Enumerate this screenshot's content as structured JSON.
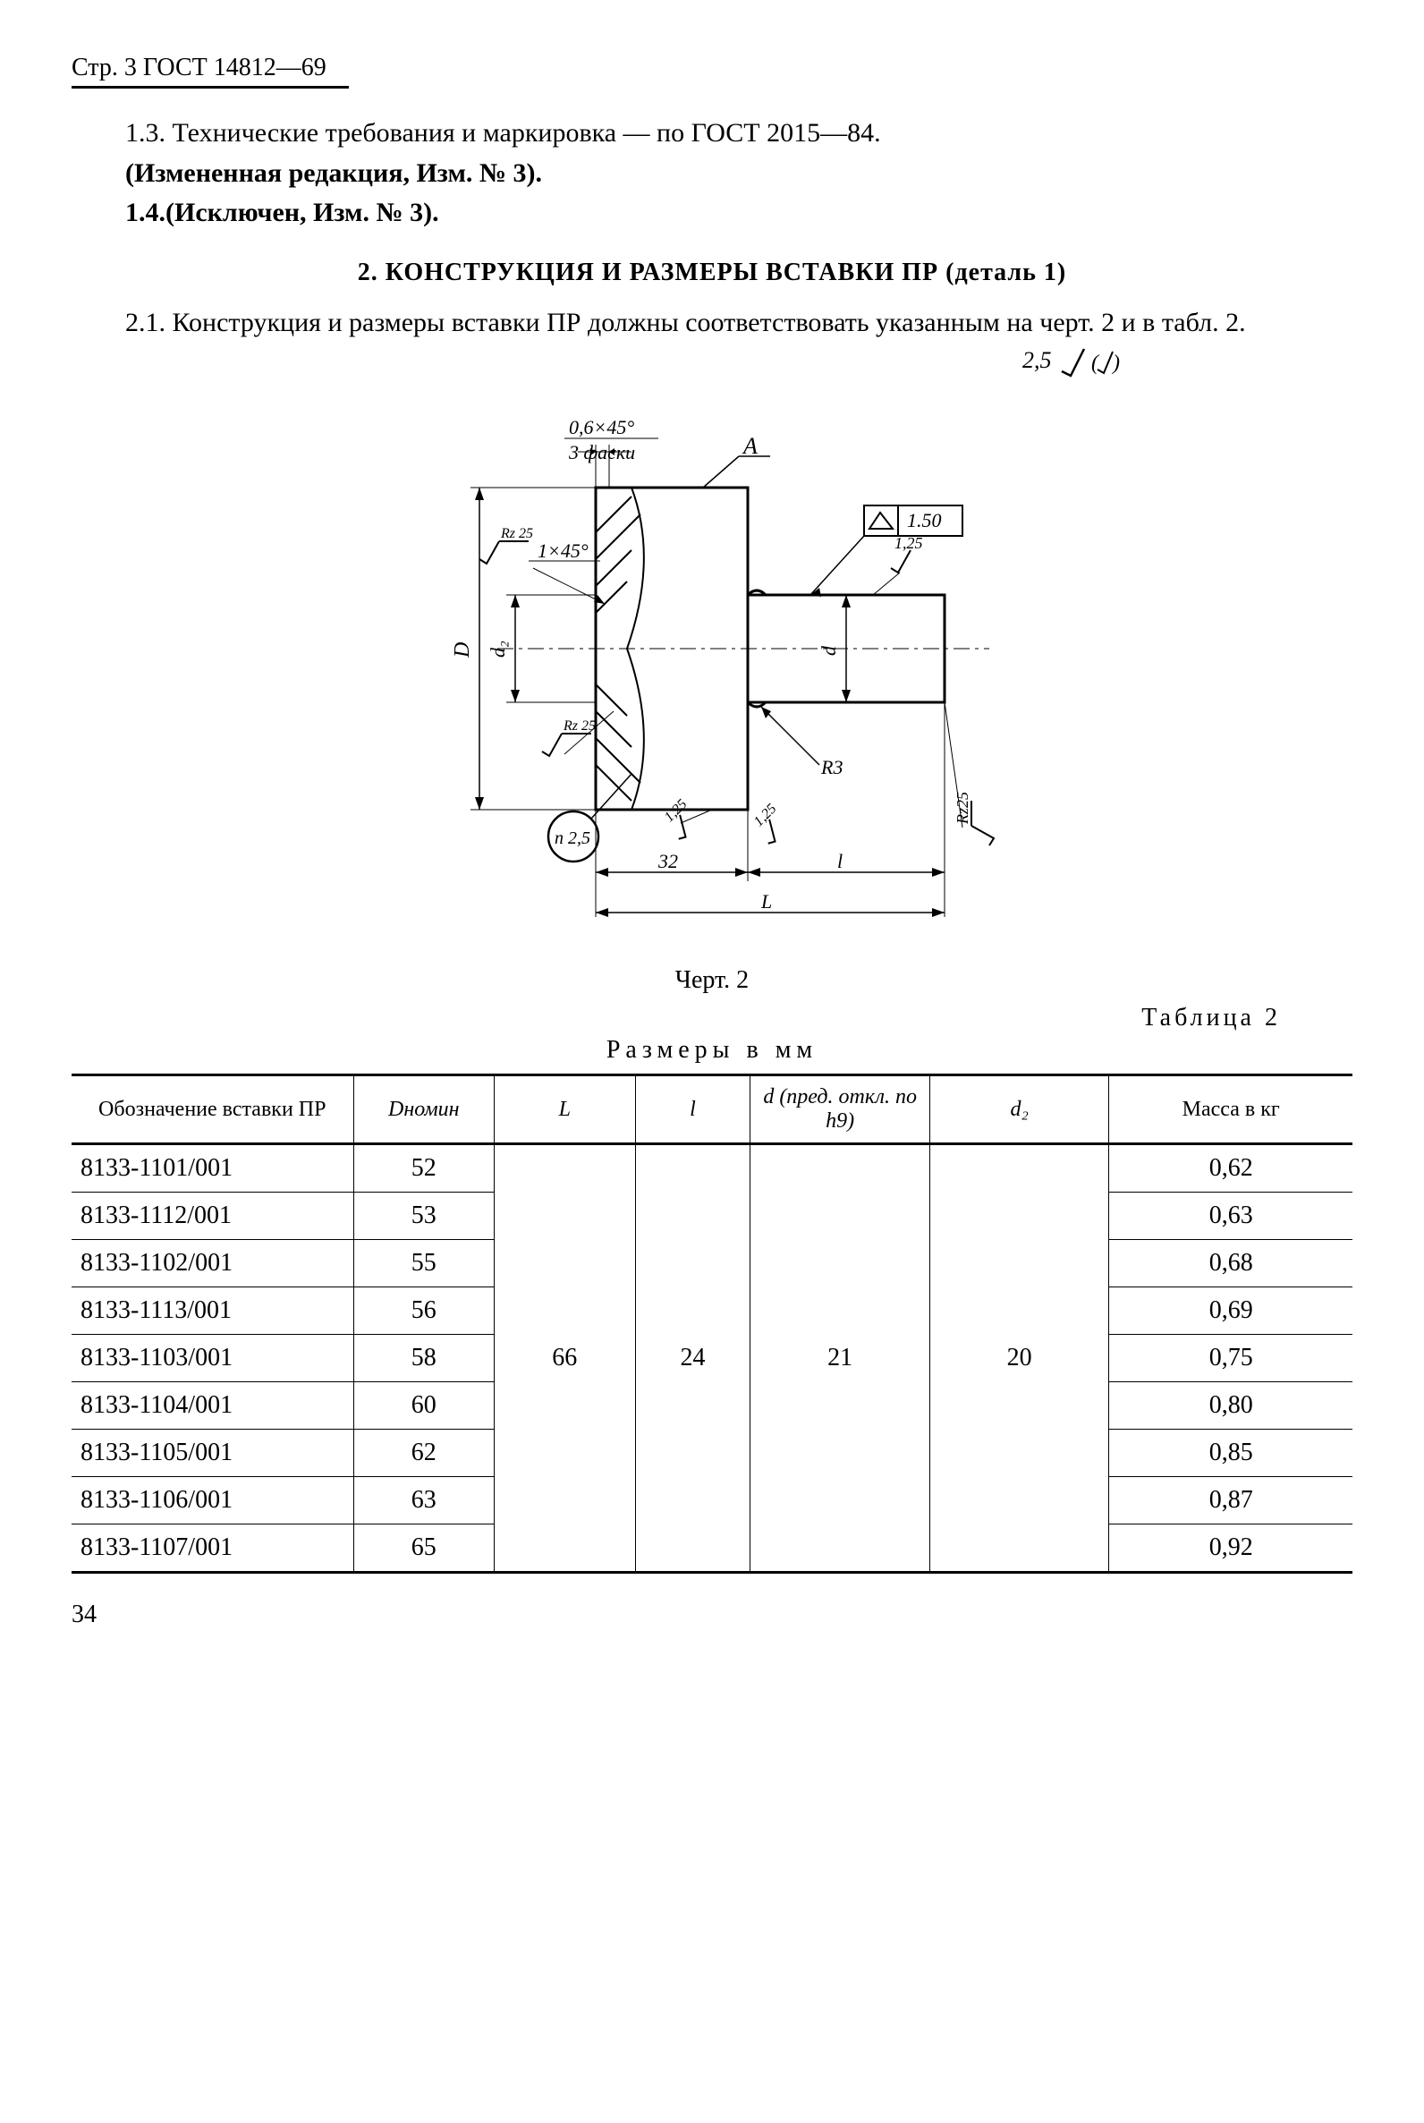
{
  "header": {
    "page_ref": "Стр. 3 ГОСТ 14812—69"
  },
  "paragraphs": {
    "p13": "1.3. Технические требования и маркировка — по ГОСТ 2015—84.",
    "p13b": "(Измененная редакция, Изм. № 3).",
    "p14": "1.4.(Исключен, Изм. № 3)."
  },
  "section2": {
    "title": "2. КОНСТРУКЦИЯ И РАЗМЕРЫ ВСТАВКИ ПР (деталь 1)",
    "p21": "2.1. Конструкция и размеры вставки ПР должны соответствовать указанным на черт. 2 и в табл. 2."
  },
  "diagram": {
    "roughness_label": "2,5",
    "caption": "Черт. 2",
    "annotations": {
      "chamfer1": "0,6×45°",
      "chamfer1_sub": "3 фаски",
      "chamfer2": "1×45°",
      "rz25": "Rz 25",
      "A": "A",
      "runout": "1.50",
      "r125": "1,25",
      "R3": "R3",
      "n25": "n 2,5",
      "dim32": "32",
      "dimL": "L",
      "diml": "l",
      "D": "D",
      "d2": "d₂",
      "d": "d",
      "s125": "1,25",
      "rz25b": "Rz25"
    },
    "colors": {
      "stroke": "#000000",
      "bg": "#ffffff"
    }
  },
  "table2": {
    "label": "Таблица 2",
    "title": "Размеры в мм",
    "columns": [
      "Обозначение вставки ПР",
      "Dномин",
      "L",
      "l",
      "d (пред. откл. по h9)",
      "d₂",
      "Масса в кг"
    ],
    "shared": {
      "L": "66",
      "l": "24",
      "d": "21",
      "d2": "20"
    },
    "rows": [
      {
        "code": "8133-1101/001",
        "D": "52",
        "mass": "0,62"
      },
      {
        "code": "8133-1112/001",
        "D": "53",
        "mass": "0,63"
      },
      {
        "code": "8133-1102/001",
        "D": "55",
        "mass": "0,68"
      },
      {
        "code": "8133-1113/001",
        "D": "56",
        "mass": "0,69"
      },
      {
        "code": "8133-1103/001",
        "D": "58",
        "mass": "0,75"
      },
      {
        "code": "8133-1104/001",
        "D": "60",
        "mass": "0,80"
      },
      {
        "code": "8133-1105/001",
        "D": "62",
        "mass": "0,85"
      },
      {
        "code": "8133-1106/001",
        "D": "63",
        "mass": "0,87"
      },
      {
        "code": "8133-1107/001",
        "D": "65",
        "mass": "0,92"
      }
    ]
  },
  "footer": {
    "page_number": "34"
  }
}
